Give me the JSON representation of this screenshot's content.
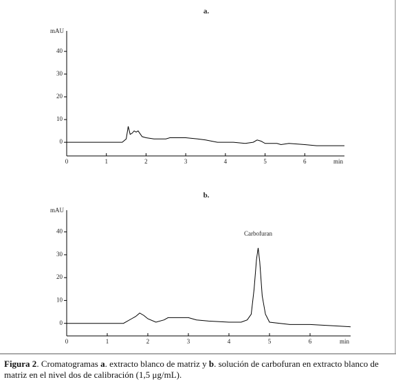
{
  "chart_data": [
    {
      "type": "line",
      "title": "a.",
      "y_label": "mAU",
      "x_label": "min",
      "color": "#000000",
      "x": [
        0,
        1.4,
        1.5,
        1.55,
        1.6,
        1.65,
        1.7,
        1.75,
        1.8,
        1.9,
        2.0,
        2.2,
        2.5,
        2.6,
        3.0,
        3.3,
        3.5,
        3.8,
        4.2,
        4.5,
        4.7,
        4.8,
        4.9,
        5.0,
        5.3,
        5.4,
        5.6,
        6.0,
        6.3,
        6.6,
        7.0
      ],
      "values": [
        0,
        0,
        1.5,
        7,
        3.5,
        4,
        5,
        4.5,
        5,
        2.5,
        2,
        1.5,
        1.5,
        2,
        2,
        1.5,
        1,
        0,
        0,
        -0.5,
        0,
        1,
        0.5,
        -0.5,
        -0.5,
        -1,
        -0.5,
        -1,
        -1.5,
        -1.5,
        -1.5
      ],
      "xlim": [
        0,
        7
      ],
      "ylim": [
        -6,
        49
      ],
      "xticks": [
        0,
        1,
        2,
        3,
        4,
        5,
        6
      ],
      "yticks": [
        0,
        10,
        20,
        30,
        40
      ]
    },
    {
      "type": "line",
      "title": "b.",
      "y_label": "mAU",
      "x_label": "min",
      "color": "#000000",
      "annotation": "Carbofuran",
      "x": [
        0,
        1.4,
        1.6,
        1.7,
        1.8,
        1.9,
        2.0,
        2.2,
        2.4,
        2.5,
        3.0,
        3.2,
        3.5,
        4.0,
        4.3,
        4.45,
        4.55,
        4.62,
        4.68,
        4.72,
        4.76,
        4.82,
        4.9,
        5.0,
        5.5,
        6.0,
        6.5,
        7.0
      ],
      "values": [
        0,
        0,
        2,
        3,
        4.5,
        3.5,
        2,
        0.5,
        1.5,
        2.5,
        2.5,
        1.5,
        1,
        0.5,
        0.5,
        1.5,
        4,
        15,
        28,
        33,
        27,
        12,
        4,
        0.5,
        -0.5,
        -0.5,
        -1,
        -1.5
      ],
      "xlim": [
        0,
        7
      ],
      "ylim": [
        -5.5,
        49.5
      ],
      "xticks": [
        0,
        1,
        2,
        3,
        4,
        5,
        6
      ],
      "yticks": [
        0,
        10,
        20,
        30,
        40
      ]
    }
  ],
  "caption": [
    {
      "text": "Figura 2",
      "bold": true
    },
    {
      "text": ". Cromatogramas ",
      "bold": false
    },
    {
      "text": "a",
      "bold": true
    },
    {
      "text": ". extracto blanco de matriz y ",
      "bold": false
    },
    {
      "text": "b",
      "bold": true
    },
    {
      "text": ". solución de carbofuran en extracto blanco de matriz en el nivel dos de calibración (1,5 μg/mL).",
      "bold": false
    }
  ]
}
